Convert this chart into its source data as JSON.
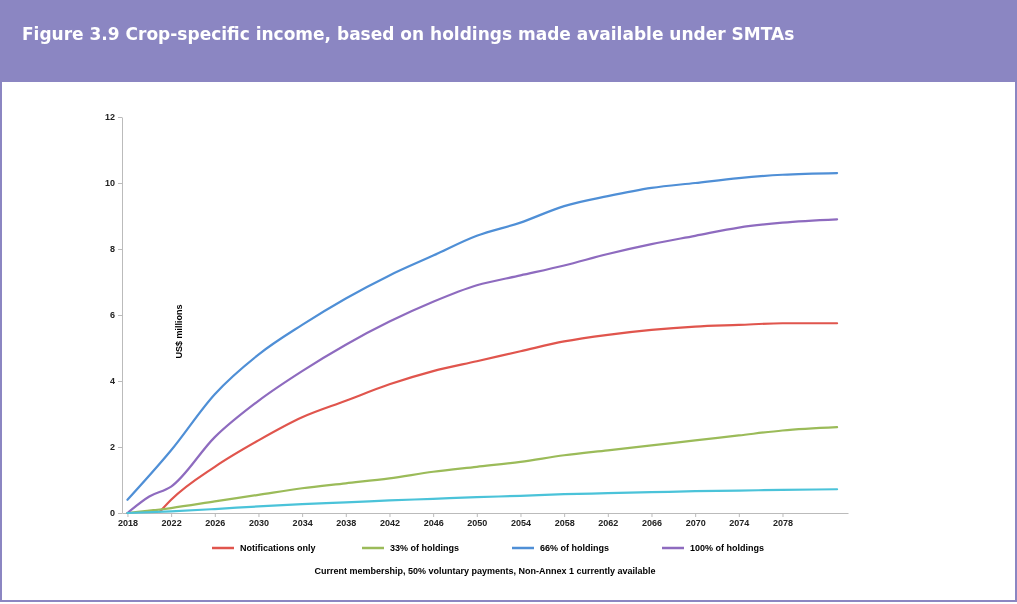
{
  "chart_data": {
    "type": "line",
    "title": "Figure 3.9 Crop-specific income, based on holdings made available under SMTAs",
    "ylabel": "US$ millions",
    "annotations": [
      "Current membership, 50% voluntary payments, Non-Annex 1 currently available"
    ],
    "xlim": [
      2017.5,
      2084
    ],
    "xticks": [
      2018,
      2022,
      2026,
      2030,
      2034,
      2038,
      2042,
      2046,
      2050,
      2054,
      2058,
      2062,
      2066,
      2070,
      2074,
      2078
    ],
    "ylim": [
      0,
      12
    ],
    "yticks": [
      0,
      2,
      4,
      6,
      8,
      10,
      12
    ],
    "grid": false,
    "legend": "bottom",
    "marker": "none",
    "line_style": "solid",
    "series": [
      {
        "name": "Notifications only",
        "color": "#e0554d",
        "x": [
          2021,
          2022,
          2026,
          2030,
          2034,
          2038,
          2042,
          2046,
          2050,
          2054,
          2058,
          2062,
          2066,
          2070,
          2074,
          2078,
          2083
        ],
        "values": [
          0.05,
          0.4,
          1.4,
          2.2,
          2.9,
          3.4,
          3.9,
          4.3,
          4.6,
          4.9,
          5.2,
          5.4,
          5.55,
          5.65,
          5.7,
          5.75,
          5.75
        ]
      },
      {
        "name": "33% of holdings",
        "color": "#9bbb59",
        "x": [
          2018,
          2022,
          2026,
          2030,
          2034,
          2038,
          2042,
          2046,
          2050,
          2054,
          2058,
          2062,
          2066,
          2070,
          2074,
          2078,
          2083
        ],
        "values": [
          0,
          0.15,
          0.35,
          0.55,
          0.75,
          0.9,
          1.05,
          1.25,
          1.4,
          1.55,
          1.75,
          1.9,
          2.05,
          2.2,
          2.35,
          2.5,
          2.6
        ]
      },
      {
        "name": "66% of holdings",
        "color": "#4f8fd6",
        "x": [
          2018,
          2022,
          2026,
          2030,
          2034,
          2038,
          2042,
          2046,
          2050,
          2054,
          2058,
          2062,
          2066,
          2070,
          2074,
          2078,
          2083
        ],
        "values": [
          0.4,
          1.9,
          3.6,
          4.8,
          5.7,
          6.5,
          7.2,
          7.8,
          8.4,
          8.8,
          9.3,
          9.6,
          9.85,
          10,
          10.15,
          10.25,
          10.3
        ]
      },
      {
        "name": "100% of holdings",
        "color": "#8e6bbf",
        "x": [
          2018,
          2020,
          2022,
          2026,
          2030,
          2034,
          2038,
          2042,
          2046,
          2050,
          2054,
          2058,
          2062,
          2066,
          2070,
          2074,
          2078,
          2083
        ],
        "values": [
          0,
          0.5,
          0.8,
          2.3,
          3.4,
          4.3,
          5.1,
          5.8,
          6.4,
          6.9,
          7.2,
          7.5,
          7.85,
          8.15,
          8.4,
          8.65,
          8.8,
          8.9
        ]
      },
      {
        "color": "#4bc3d9",
        "x": [
          2018,
          2022,
          2026,
          2030,
          2034,
          2038,
          2042,
          2046,
          2050,
          2054,
          2058,
          2062,
          2066,
          2070,
          2074,
          2078,
          2083
        ],
        "values": [
          0,
          0.05,
          0.12,
          0.2,
          0.27,
          0.32,
          0.38,
          0.43,
          0.48,
          0.52,
          0.57,
          0.6,
          0.63,
          0.66,
          0.68,
          0.7,
          0.72
        ]
      }
    ]
  }
}
